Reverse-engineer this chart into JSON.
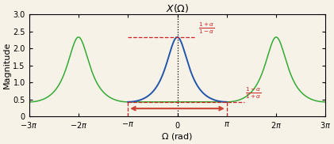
{
  "alpha": 0.4,
  "xlim": [
    -9.42477796,
    9.42477796
  ],
  "ylim": [
    0,
    3.0
  ],
  "title": "$X(\\Omega)$",
  "xlabel": "$\\Omega$ (rad)",
  "ylabel": "Magnitude",
  "xtick_vals": [
    -9.42477796,
    -6.28318531,
    -3.14159265,
    0,
    3.14159265,
    6.28318531,
    9.42477796
  ],
  "xtick_labels": [
    "$-3\\pi$",
    "$-2\\pi$",
    "$-\\pi$",
    "$0$",
    "$\\pi$",
    "$2\\pi$",
    "$3\\pi$"
  ],
  "ytick_vals": [
    0,
    0.5,
    1.0,
    1.5,
    2.0,
    2.5,
    3.0
  ],
  "line_color_blue": "#2255aa",
  "line_color_green": "#33aa33",
  "annotation_color": "#cc2222",
  "dashed_color": "#cc2222",
  "arrow_color": "#cc4433",
  "dotted_color": "#000000",
  "bg_color": "#f7f2e8",
  "figsize": [
    4.21,
    1.82
  ],
  "dpi": 100,
  "title_fontsize": 9,
  "label_fontsize": 7,
  "axis_label_fontsize": 8
}
